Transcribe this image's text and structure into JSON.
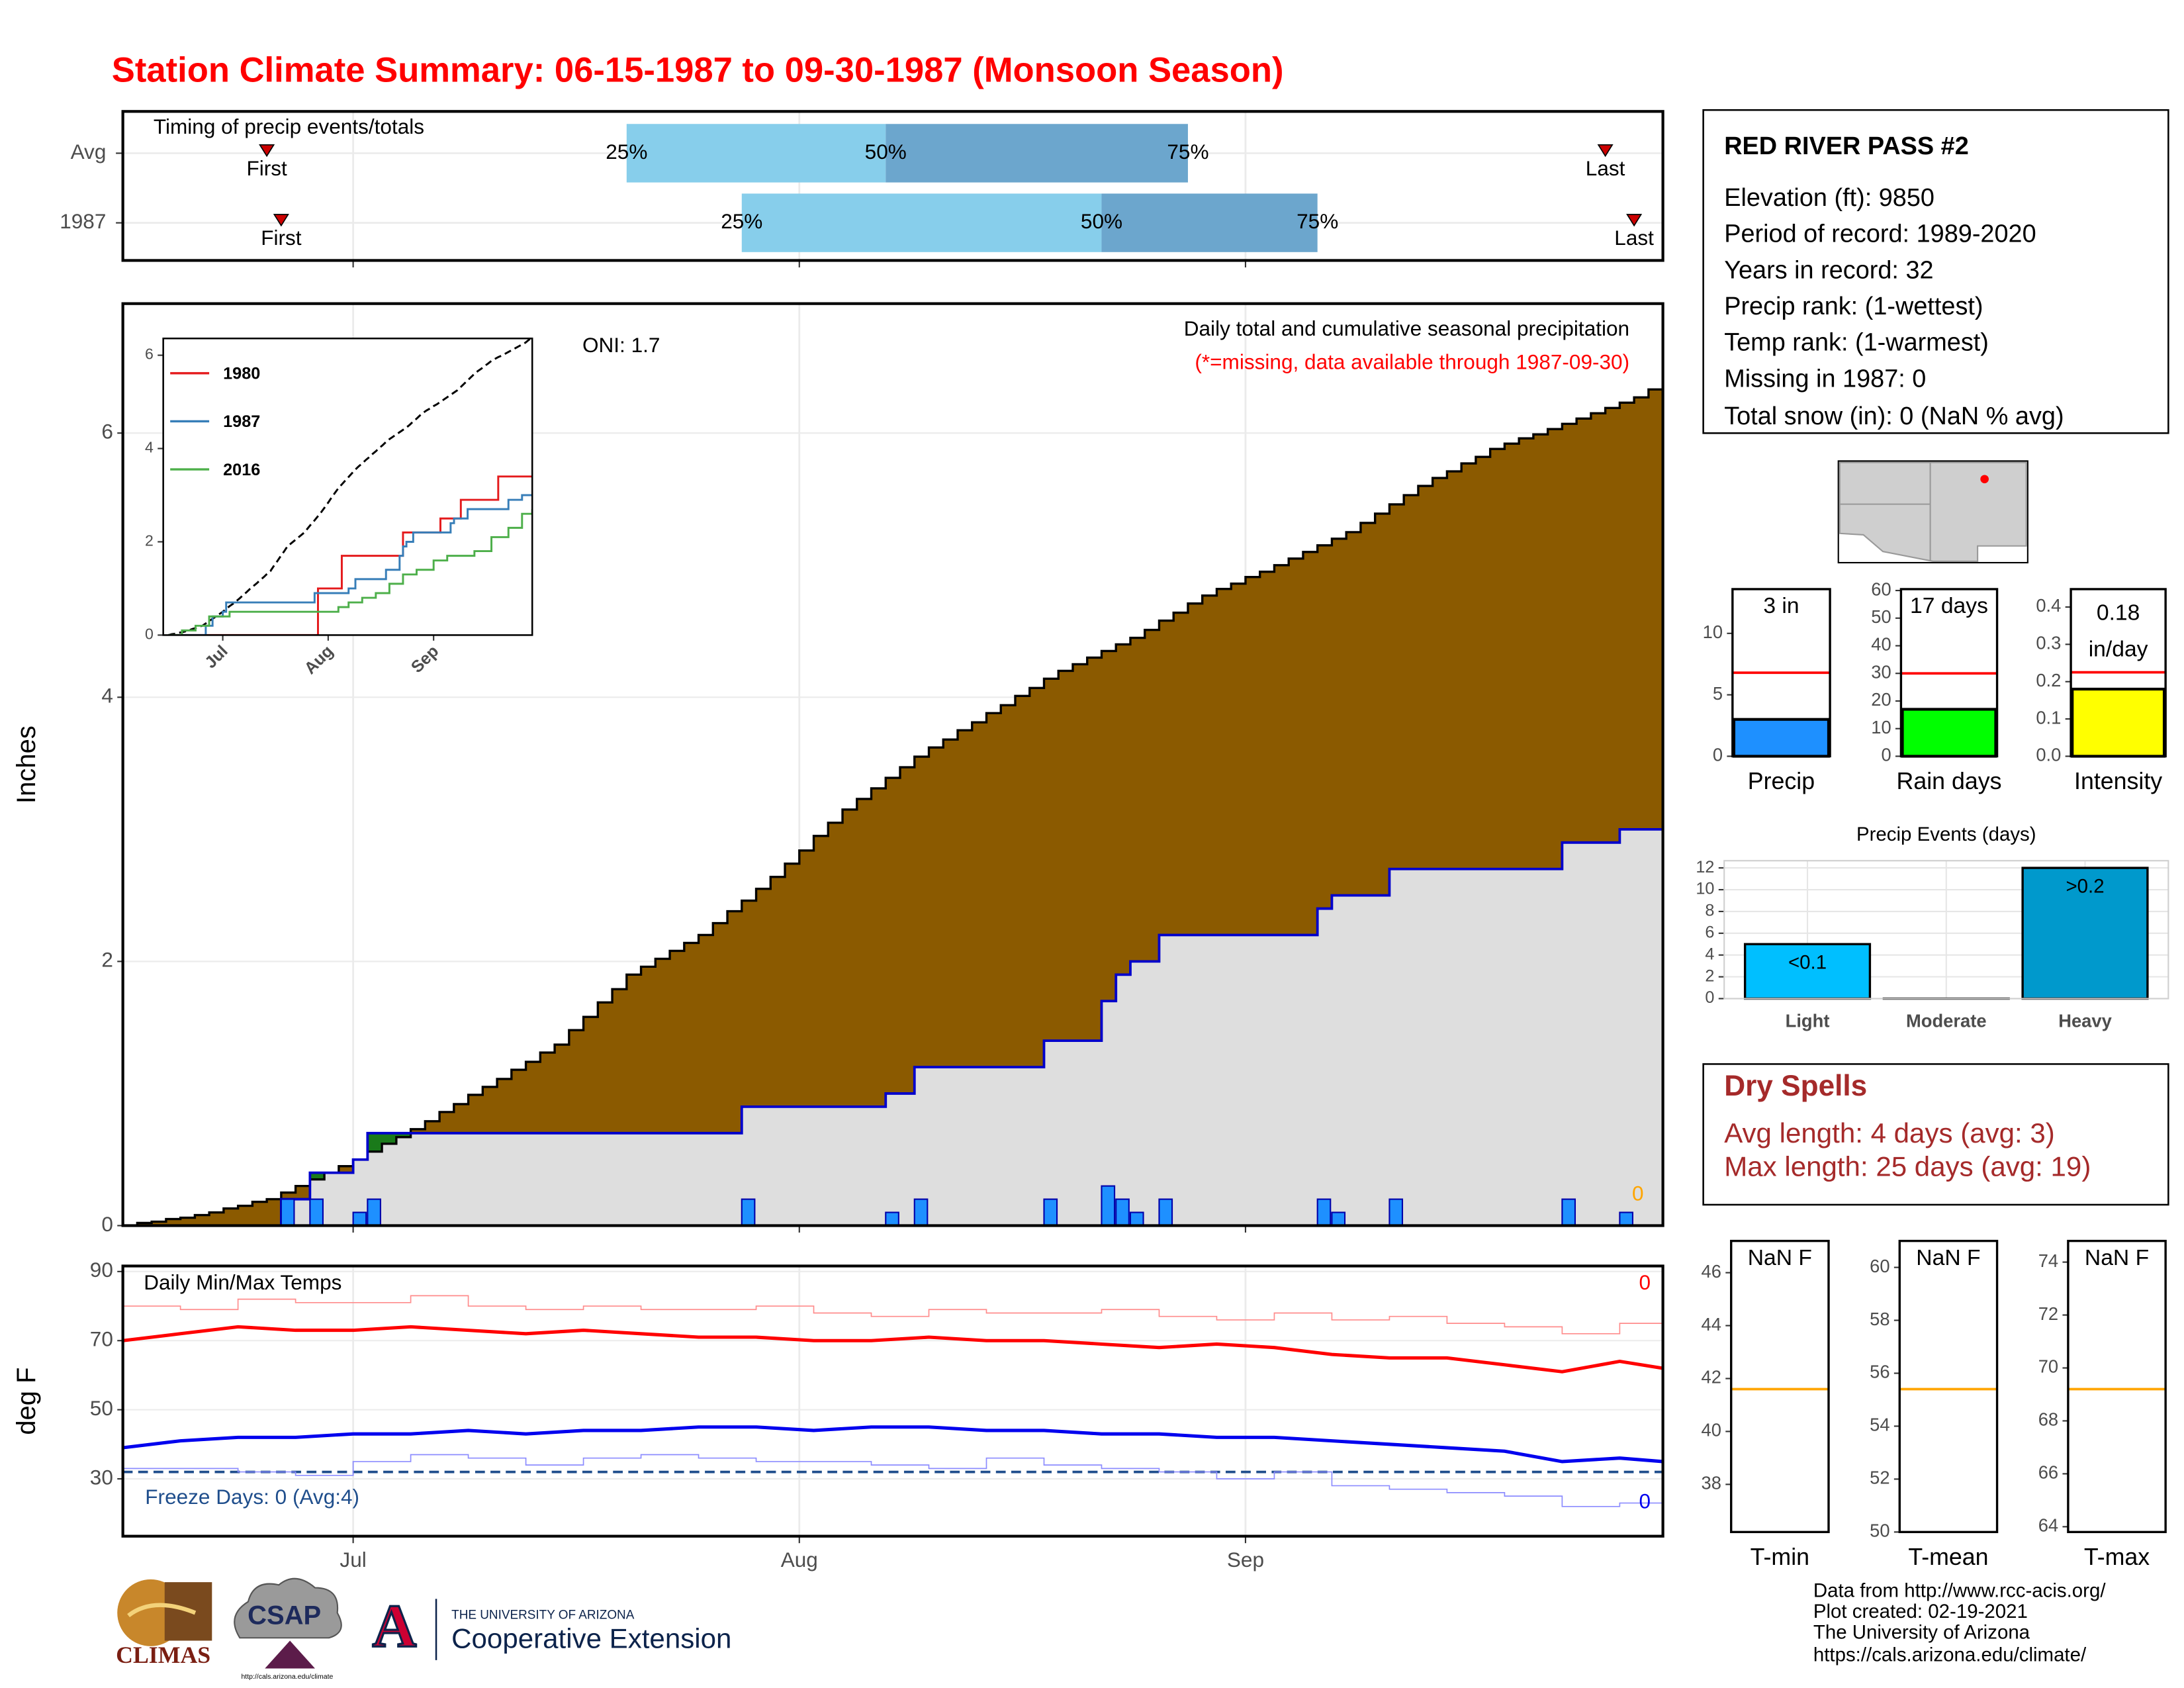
{
  "title": "Station Climate Summary: 06-15-1987 to 09-30-1987 (Monsoon Season)",
  "chart_data": [
    {
      "type": "timing",
      "title": "Timing of precip events/totals",
      "xlim": [
        0,
        107
      ],
      "categories": [
        "Avg",
        "1987"
      ],
      "first": [
        10,
        11
      ],
      "q25": [
        35,
        43
      ],
      "q50": [
        53,
        68
      ],
      "q75": [
        74,
        83
      ],
      "last": [
        103,
        105
      ],
      "labels": {
        "first": "First",
        "q25": "25%",
        "q50": "50%",
        "q75": "75%",
        "last": "Last"
      },
      "colors": [
        "#87ceeb",
        "#6ca6cd"
      ],
      "marker_color": "#cc0000"
    },
    {
      "type": "area",
      "title": "Daily total and cumulative seasonal precipitation",
      "subtitle": "(*=missing, data available through 1987-09-30)",
      "annotation": "ONI: 1.7",
      "missing": 0,
      "ylabel": "Inches",
      "xlim": [
        0,
        107
      ],
      "ylim": [
        0,
        6.98
      ],
      "yticks": [
        0,
        2,
        4,
        6
      ],
      "grid": true,
      "series": [
        {
          "color": "#8b5a00",
          "values": [
            0,
            0.02,
            0.03,
            0.05,
            0.06,
            0.08,
            0.1,
            0.13,
            0.15,
            0.18,
            0.2,
            0.25,
            0.3,
            0.35,
            0.4,
            0.45,
            0.5,
            0.56,
            0.62,
            0.67,
            0.73,
            0.79,
            0.86,
            0.92,
            0.99,
            1.05,
            1.11,
            1.18,
            1.24,
            1.31,
            1.37,
            1.48,
            1.58,
            1.69,
            1.79,
            1.9,
            1.96,
            2.02,
            2.08,
            2.14,
            2.2,
            2.29,
            2.38,
            2.46,
            2.55,
            2.64,
            2.74,
            2.84,
            2.95,
            3.05,
            3.15,
            3.23,
            3.31,
            3.39,
            3.47,
            3.55,
            3.62,
            3.68,
            3.75,
            3.81,
            3.88,
            3.94,
            4.01,
            4.07,
            4.14,
            4.2,
            4.25,
            4.3,
            4.35,
            4.4,
            4.45,
            4.51,
            4.58,
            4.64,
            4.71,
            4.77,
            4.82,
            4.86,
            4.91,
            4.95,
            5.0,
            5.05,
            5.1,
            5.15,
            5.2,
            5.25,
            5.32,
            5.39,
            5.46,
            5.53,
            5.6,
            5.66,
            5.71,
            5.77,
            5.82,
            5.88,
            5.92,
            5.96,
            5.99,
            6.03,
            6.07,
            6.11,
            6.15,
            6.19,
            6.23,
            6.27,
            6.33,
            6.38
          ]
        },
        {
          "color": "#1e90ff",
          "values": [
            0,
            0,
            0,
            0,
            0,
            0,
            0,
            0,
            0,
            0,
            0,
            0.2,
            0,
            0.2,
            0,
            0,
            0.1,
            0.2,
            0,
            0,
            0,
            0,
            0,
            0,
            0,
            0,
            0,
            0,
            0,
            0,
            0,
            0,
            0,
            0,
            0,
            0,
            0,
            0,
            0,
            0,
            0,
            0,
            0,
            0.2,
            0,
            0,
            0,
            0,
            0,
            0,
            0,
            0,
            0,
            0.1,
            0,
            0.2,
            0,
            0,
            0,
            0,
            0,
            0,
            0,
            0,
            0.2,
            0,
            0,
            0,
            0.3,
            0.2,
            0.1,
            0,
            0.2,
            0,
            0,
            0,
            0,
            0,
            0,
            0,
            0,
            0,
            0,
            0.2,
            0.1,
            0,
            0,
            0,
            0.2,
            0,
            0,
            0,
            0,
            0,
            0,
            0,
            0,
            0,
            0,
            0,
            0.2,
            0,
            0,
            0,
            0.1,
            0,
            0,
            0
          ]
        }
      ],
      "cumulative_color": "#0000cc",
      "above_color": "#1a7a1a",
      "below_color": "#dedede",
      "missing_color": "#ffa500"
    },
    {
      "type": "line",
      "xlim": [
        -1.5,
        107
      ],
      "ylim": [
        0,
        6.36
      ],
      "yticks": [
        0,
        2,
        4,
        6
      ],
      "xticks": [
        {
          "value": 16,
          "label": "Jul"
        },
        {
          "value": 47,
          "label": "Aug"
        },
        {
          "value": 78,
          "label": "Sep"
        }
      ],
      "average_color": "#000000",
      "series": [
        {
          "name": "1980",
          "color": "#e41a1c",
          "x": [
            0,
            44,
            51,
            69,
            80,
            86,
            97,
            107
          ],
          "values": [
            0,
            1.0,
            1.7,
            2.2,
            2.5,
            2.9,
            3.4,
            3.4
          ]
        },
        {
          "name": "1987",
          "color": "#377eb8"
        },
        {
          "name": "2016",
          "color": "#4daf4a",
          "x": [
            0,
            4,
            8,
            12,
            18,
            50,
            53,
            57,
            61,
            65,
            69,
            73,
            78,
            82,
            90,
            95,
            100,
            104,
            107
          ],
          "values": [
            0,
            0.1,
            0.2,
            0.4,
            0.5,
            0.6,
            0.7,
            0.8,
            0.9,
            1.1,
            1.3,
            1.4,
            1.6,
            1.7,
            1.8,
            2.1,
            2.3,
            2.6,
            2.7
          ]
        }
      ]
    },
    {
      "type": "line",
      "title": "Daily Min/Max Temps",
      "ylabel": "deg F",
      "xlim": [
        0,
        107
      ],
      "ylim": [
        13.4,
        91.6
      ],
      "yticks": [
        30,
        50,
        70,
        90
      ],
      "xticks": [
        {
          "value": 16,
          "label": "Jul"
        },
        {
          "value": 47,
          "label": "Aug"
        },
        {
          "value": 78,
          "label": "Sep"
        }
      ],
      "grid": true,
      "x": [
        0,
        4,
        8,
        12,
        16,
        20,
        24,
        28,
        32,
        36,
        40,
        44,
        48,
        52,
        56,
        60,
        64,
        68,
        72,
        76,
        80,
        84,
        88,
        92,
        96,
        100,
        104,
        107
      ],
      "series": [
        {
          "color": "#ff8c8c",
          "values": [
            80,
            79,
            82,
            81,
            81,
            83,
            80,
            79,
            80,
            79,
            79,
            80,
            78,
            77,
            79,
            78,
            78,
            79,
            77,
            76,
            78,
            76,
            77,
            75,
            74,
            72,
            75,
            74
          ]
        },
        {
          "color": "#ff0000",
          "values": [
            70,
            72,
            74,
            73,
            73,
            74,
            73,
            72,
            73,
            72,
            71,
            71,
            70,
            70,
            71,
            70,
            70,
            69,
            68,
            69,
            68,
            66,
            65,
            65,
            63,
            61,
            64,
            62
          ]
        },
        {
          "color": "#8c8cff",
          "values": [
            33,
            33,
            32,
            31,
            35,
            37,
            36,
            34,
            36,
            37,
            36,
            35,
            35,
            34,
            33,
            36,
            34,
            33,
            32,
            30,
            32,
            28,
            27,
            26,
            25,
            22,
            23,
            19
          ]
        },
        {
          "color": "#0000ee",
          "values": [
            39,
            41,
            42,
            42,
            43,
            43,
            44,
            43,
            44,
            44,
            45,
            45,
            44,
            45,
            45,
            44,
            44,
            43,
            43,
            42,
            42,
            41,
            40,
            39,
            38,
            35,
            36,
            35
          ]
        }
      ],
      "freeze_line": 32,
      "freeze_color": "#1f4e8c",
      "freeze_label": "Freeze Days: 0 (Avg:4)",
      "max_missing": 0,
      "min_missing": 0
    },
    {
      "type": "bar",
      "label": "Precip",
      "value": 3,
      "value_label": "3 in",
      "average": 6.8,
      "ylim": [
        0,
        13.6
      ],
      "yticks": [
        0,
        5,
        10
      ],
      "color": "#1e90ff",
      "average_color": "#ff0000"
    },
    {
      "type": "bar",
      "label": "Rain days",
      "value": 17,
      "value_label": "17 days",
      "average": 30,
      "ylim": [
        0,
        60.5
      ],
      "yticks": [
        0,
        10,
        20,
        30,
        40,
        50,
        60
      ],
      "color": "#00ff00",
      "average_color": "#ff0000"
    },
    {
      "type": "bar",
      "label": "Intensity",
      "value": 0.18,
      "value_label": "0.18",
      "unit_label": "in/day",
      "average": 0.225,
      "ylim": [
        0,
        0.448
      ],
      "yticks": [
        {
          "value": 0,
          "label": "0.0"
        },
        0.1,
        0.2,
        0.3,
        0.4
      ],
      "color": "#ffff00",
      "average_color": "#ff0000"
    },
    {
      "type": "bar",
      "title": "Precip Events (days)",
      "categories": [
        "Light",
        "Moderate",
        "Heavy"
      ],
      "values": [
        5,
        0,
        12
      ],
      "thresholds": [
        "<0.1",
        null,
        ">0.2"
      ],
      "colors": [
        "#00bfff",
        "#1a1a1a",
        "#0099cc"
      ],
      "ylim": [
        0,
        12.66
      ],
      "yticks": [
        0,
        2,
        4,
        6,
        8,
        10,
        12
      ]
    },
    {
      "type": "bar",
      "label": "T-min",
      "value_label": "NaN F",
      "average": 41.6,
      "ylim": [
        36.2,
        47.2
      ],
      "yticks": [
        38,
        40,
        42,
        44,
        46
      ],
      "average_color": "#ffa500"
    },
    {
      "type": "bar",
      "label": "T-mean",
      "value_label": "NaN F",
      "average": 55.4,
      "ylim": [
        50,
        61
      ],
      "yticks": [
        50,
        52,
        54,
        56,
        58,
        60
      ],
      "average_color": "#ffa500"
    },
    {
      "type": "bar",
      "label": "T-max",
      "value_label": "NaN F",
      "average": 69.2,
      "ylim": [
        63.8,
        74.8
      ],
      "yticks": [
        64,
        66,
        68,
        70,
        72,
        74
      ],
      "average_color": "#ffa500"
    }
  ],
  "station": {
    "name": "RED RIVER PASS #2",
    "lines": [
      "Elevation (ft): 9850",
      "Period of record: 1989-2020",
      "Years in record: 32",
      "Precip rank:  (1-wettest)",
      "Temp rank:  (1-warmest)",
      "Missing in 1987: 0",
      "Total snow (in): 0 (NaN % avg)"
    ]
  },
  "dry_spells": {
    "title": "Dry Spells",
    "lines": [
      "Avg length: 4 days (avg: 3)",
      "Max length: 25 days (avg: 19)"
    ]
  },
  "footer": [
    "Data from http://www.rcc-acis.org/",
    "Plot created: 02-19-2021",
    "The University of Arizona",
    "https://cals.arizona.edu/climate/"
  ],
  "logos": {
    "climas": "CLIMAS",
    "csap": "CSAP",
    "csap_url": "http://cals.arizona.edu/climate",
    "ua_mark": "A",
    "ua": "THE UNIVERSITY OF ARIZONA",
    "extension": "Cooperative Extension"
  }
}
